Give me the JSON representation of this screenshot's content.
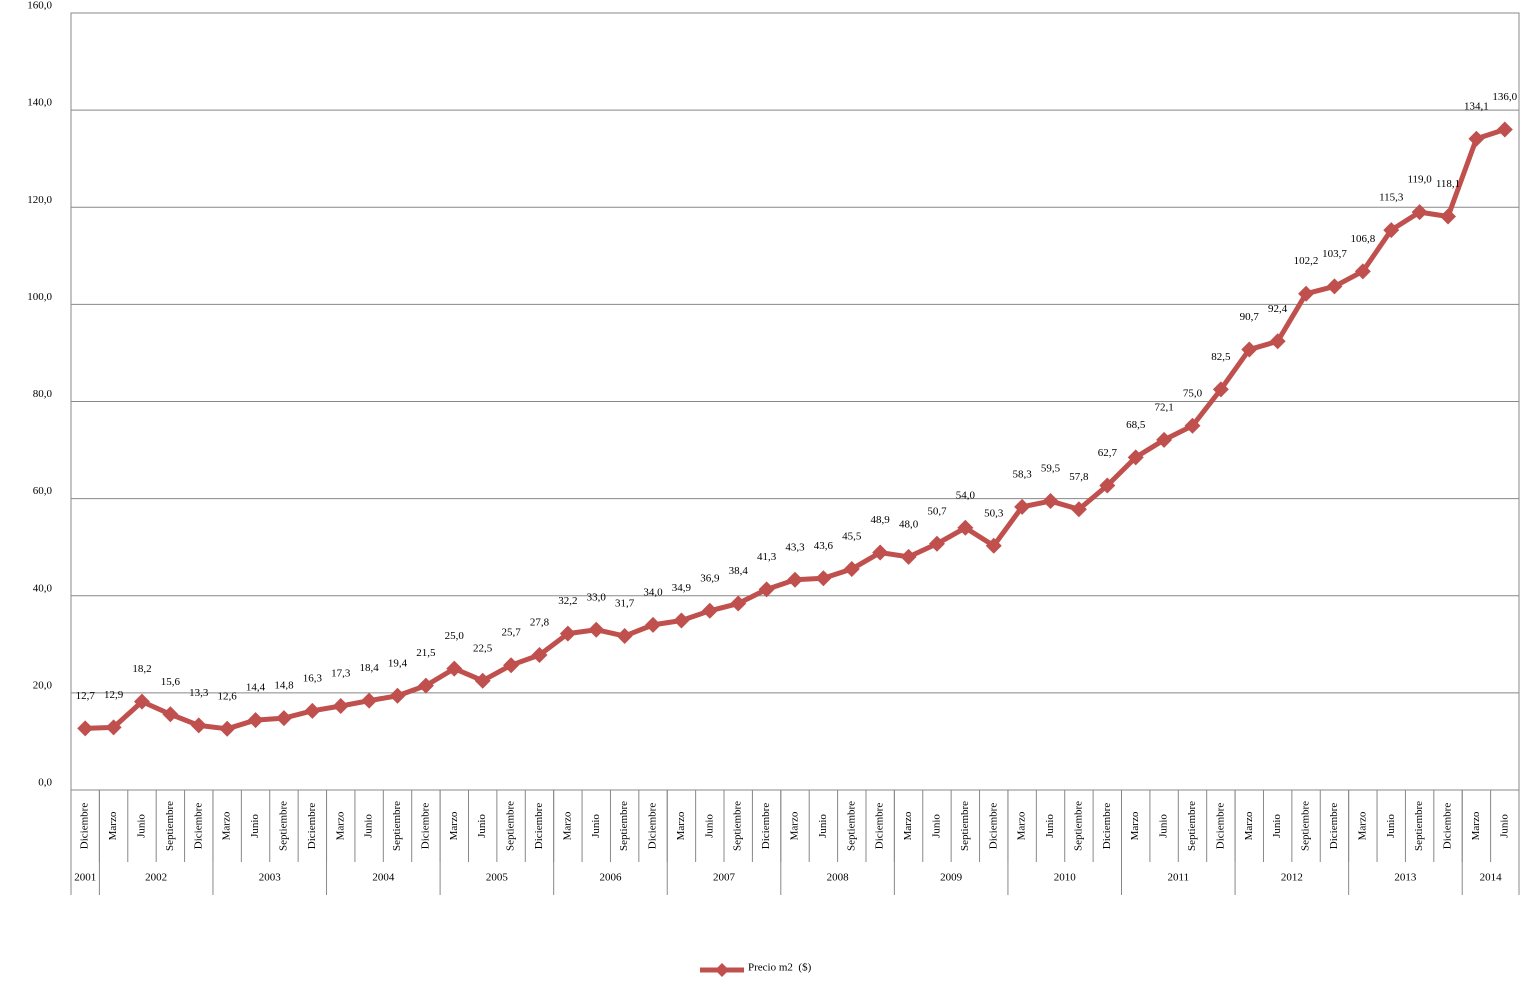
{
  "chart_data": {
    "type": "line",
    "categories": [
      "Diciembre",
      "Marzo",
      "Junio",
      "Septiembre",
      "Diciembre",
      "Marzo",
      "Junio",
      "Septiembre",
      "Diciembre",
      "Marzo",
      "Junio",
      "Septiembre",
      "Diciembre",
      "Marzo",
      "Junio",
      "Septiembre",
      "Diciembre",
      "Marzo",
      "Junio",
      "Septiembre",
      "Diciembre",
      "Marzo",
      "Junio",
      "Septiembre",
      "Diciembre",
      "Marzo",
      "Junio",
      "Septiembre",
      "Diciembre",
      "Marzo",
      "Junio",
      "Septiembre",
      "Diciembre",
      "Marzo",
      "Junio",
      "Septiembre",
      "Diciembre",
      "Marzo",
      "Junio",
      "Septiembre",
      "Diciembre",
      "Marzo",
      "Junio",
      "Septiembre",
      "Diciembre",
      "Marzo",
      "Junio",
      "Septiembre",
      "Diciembre",
      "Marzo",
      "Junio"
    ],
    "category_years": [
      "2001",
      "2002",
      "2002",
      "2002",
      "2002",
      "2003",
      "2003",
      "2003",
      "2003",
      "2004",
      "2004",
      "2004",
      "2004",
      "2005",
      "2005",
      "2005",
      "2005",
      "2006",
      "2006",
      "2006",
      "2006",
      "2007",
      "2007",
      "2007",
      "2007",
      "2008",
      "2008",
      "2008",
      "2008",
      "2009",
      "2009",
      "2009",
      "2009",
      "2010",
      "2010",
      "2010",
      "2010",
      "2011",
      "2011",
      "2011",
      "2011",
      "2012",
      "2012",
      "2012",
      "2012",
      "2013",
      "2013",
      "2013",
      "2013",
      "2014",
      "2014"
    ],
    "series": [
      {
        "name": "Precio m2  ($)",
        "color": "#c0504d",
        "values": [
          12.7,
          12.9,
          18.2,
          15.6,
          13.3,
          12.6,
          14.4,
          14.8,
          16.3,
          17.3,
          18.4,
          19.4,
          21.5,
          25.0,
          22.5,
          25.7,
          27.8,
          32.2,
          33.0,
          31.7,
          34.0,
          34.9,
          36.9,
          38.4,
          41.3,
          43.3,
          43.6,
          45.5,
          48.9,
          48.0,
          50.7,
          54.0,
          50.3,
          58.3,
          59.5,
          57.8,
          62.7,
          68.5,
          72.1,
          75.0,
          82.5,
          90.7,
          92.4,
          102.2,
          103.7,
          106.8,
          115.3,
          119.0,
          118.1,
          134.1,
          136.0
        ],
        "value_labels": [
          "12,7",
          "12,9",
          "18,2",
          "15,6",
          "13,3",
          "12,6",
          "14,4",
          "14,8",
          "16,3",
          "17,3",
          "18,4",
          "19,4",
          "21,5",
          "25,0",
          "22,5",
          "25,7",
          "27,8",
          "32,2",
          "33,0",
          "31,7",
          "34,0",
          "34,9",
          "36,9",
          "38,4",
          "41,3",
          "43,3",
          "43,6",
          "45,5",
          "48,9",
          "48,0",
          "50,7",
          "54,0",
          "50,3",
          "58,3",
          "59,5",
          "57,8",
          "62,7",
          "68,5",
          "72,1",
          "75,0",
          "82,5",
          "90,7",
          "92,4",
          "102,2",
          "103,7",
          "106,8",
          "115,3",
          "119,0",
          "118,1",
          "134,1",
          "136,0"
        ]
      }
    ],
    "ylim": [
      0,
      160
    ],
    "yticks": [
      {
        "value": 0,
        "label": "0,0"
      },
      {
        "value": 20,
        "label": "20,0"
      },
      {
        "value": 40,
        "label": "40,0"
      },
      {
        "value": 60,
        "label": "60,0"
      },
      {
        "value": 80,
        "label": "80,0"
      },
      {
        "value": 100,
        "label": "100,0"
      },
      {
        "value": 120,
        "label": "120,0"
      },
      {
        "value": 140,
        "label": "140,0"
      },
      {
        "value": 160,
        "label": "160,0"
      }
    ],
    "grid": true,
    "legend": "bottom"
  }
}
